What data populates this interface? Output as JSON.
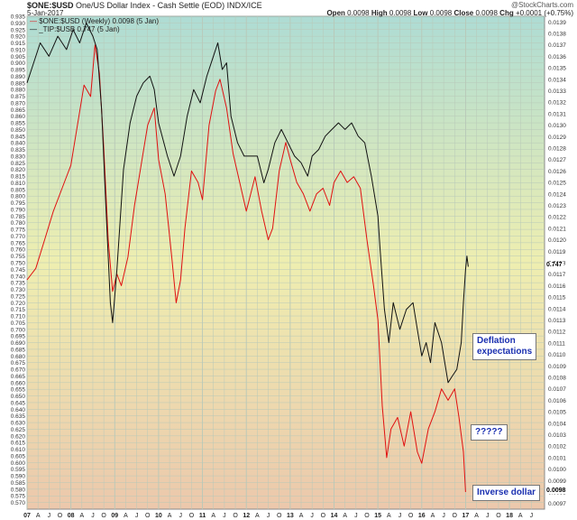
{
  "header": {
    "symbol": "$ONE:$USD",
    "description": "One/US Dollar Index - Cash Settle (EOD) INDX/ICE",
    "date": "5-Jan-2017",
    "watermark": "@StockCharts.com",
    "ohlc": [
      {
        "label": "Open",
        "value": "0.0098"
      },
      {
        "label": "High",
        "value": "0.0098"
      },
      {
        "label": "Low",
        "value": "0.0098"
      },
      {
        "label": "Close",
        "value": "0.0098"
      },
      {
        "label": "Chg",
        "value": "+0.0001 (+0.75%)"
      }
    ]
  },
  "annotations": {
    "deflation_line1": "Deflation",
    "deflation_line2": "expectations",
    "question": "?????",
    "inverse": "Inverse dollar"
  },
  "colors": {
    "tip_series": "#111111",
    "usd_series": "#e01010",
    "grid": "#b8c8b8",
    "bg_top": "#aedcd4",
    "bg_mid": "#eeeeb0",
    "bg_bottom": "#ecc8ac"
  },
  "chart_data": {
    "type": "line",
    "title": "$ONE:$USD",
    "legend_placement": "top-left",
    "grid": true,
    "x_ticks": [
      "07",
      "A",
      "J",
      "O",
      "08",
      "A",
      "J",
      "O",
      "09",
      "A",
      "J",
      "O",
      "10",
      "A",
      "J",
      "O",
      "11",
      "A",
      "J",
      "O",
      "12",
      "A",
      "J",
      "O",
      "13",
      "A",
      "J",
      "O",
      "14",
      "A",
      "J",
      "O",
      "15",
      "A",
      "J",
      "O",
      "16",
      "A",
      "J",
      "O",
      "17",
      "A",
      "J",
      "O",
      "18",
      "A",
      "J"
    ],
    "xlim": [
      2007.0,
      2018.8
    ],
    "left_axis": {
      "ylim": [
        0.565,
        0.935
      ],
      "ticks": [
        "0.935",
        "0.930",
        "0.925",
        "0.920",
        "0.915",
        "0.910",
        "0.905",
        "0.900",
        "0.895",
        "0.890",
        "0.885",
        "0.880",
        "0.875",
        "0.870",
        "0.865",
        "0.860",
        "0.855",
        "0.850",
        "0.845",
        "0.840",
        "0.835",
        "0.830",
        "0.825",
        "0.820",
        "0.815",
        "0.810",
        "0.805",
        "0.800",
        "0.795",
        "0.790",
        "0.785",
        "0.780",
        "0.775",
        "0.770",
        "0.765",
        "0.760",
        "0.755",
        "0.750",
        "0.745",
        "0.740",
        "0.735",
        "0.730",
        "0.725",
        "0.720",
        "0.715",
        "0.710",
        "0.705",
        "0.700",
        "0.695",
        "0.690",
        "0.685",
        "0.680",
        "0.675",
        "0.670",
        "0.665",
        "0.660",
        "0.655",
        "0.650",
        "0.645",
        "0.640",
        "0.635",
        "0.630",
        "0.625",
        "0.620",
        "0.615",
        "0.610",
        "0.605",
        "0.600",
        "0.595",
        "0.590",
        "0.585",
        "0.580",
        "0.575",
        "0.570"
      ]
    },
    "right_axis": {
      "ylim": [
        0.00965,
        0.01395
      ],
      "ticks": [
        "0.0139",
        "0.0138",
        "0.0137",
        "0.0136",
        "0.0135",
        "0.0134",
        "0.0133",
        "0.0132",
        "0.0131",
        "0.0130",
        "0.0129",
        "0.0128",
        "0.0127",
        "0.0126",
        "0.0125",
        "0.0124",
        "0.0123",
        "0.0122",
        "0.0121",
        "0.0120",
        "0.0119",
        "0.0118",
        "0.0117",
        "0.0116",
        "0.0115",
        "0.0114",
        "0.0113",
        "0.0112",
        "0.0111",
        "0.0110",
        "0.0109",
        "0.0108",
        "0.0107",
        "0.0106",
        "0.0105",
        "0.0104",
        "0.0103",
        "0.0102",
        "0.0101",
        "0.0100",
        "0.0099",
        "0.0098",
        "0.0097"
      ]
    },
    "series": [
      {
        "name": "$ONE:$USD (Weekly) 0.0098 (5 Jan)",
        "axis": "right",
        "last_label": "0.0098",
        "points": [
          [
            2007.0,
            0.01165
          ],
          [
            2007.2,
            0.01175
          ],
          [
            2007.4,
            0.012
          ],
          [
            2007.6,
            0.01225
          ],
          [
            2007.8,
            0.01245
          ],
          [
            2008.0,
            0.01265
          ],
          [
            2008.15,
            0.013
          ],
          [
            2008.3,
            0.01335
          ],
          [
            2008.45,
            0.01325
          ],
          [
            2008.55,
            0.0137
          ],
          [
            2008.65,
            0.01345
          ],
          [
            2008.75,
            0.0128
          ],
          [
            2008.85,
            0.012
          ],
          [
            2008.95,
            0.01155
          ],
          [
            2009.05,
            0.0117
          ],
          [
            2009.15,
            0.0116
          ],
          [
            2009.3,
            0.01185
          ],
          [
            2009.45,
            0.0123
          ],
          [
            2009.6,
            0.01265
          ],
          [
            2009.75,
            0.013
          ],
          [
            2009.9,
            0.01315
          ],
          [
            2010.0,
            0.0127
          ],
          [
            2010.15,
            0.0124
          ],
          [
            2010.3,
            0.01185
          ],
          [
            2010.4,
            0.01145
          ],
          [
            2010.5,
            0.01165
          ],
          [
            2010.6,
            0.0121
          ],
          [
            2010.75,
            0.0126
          ],
          [
            2010.9,
            0.0125
          ],
          [
            2011.0,
            0.01235
          ],
          [
            2011.15,
            0.013
          ],
          [
            2011.3,
            0.0133
          ],
          [
            2011.4,
            0.0134
          ],
          [
            2011.55,
            0.01315
          ],
          [
            2011.7,
            0.01275
          ],
          [
            2011.85,
            0.0125
          ],
          [
            2012.0,
            0.01225
          ],
          [
            2012.2,
            0.01255
          ],
          [
            2012.35,
            0.01225
          ],
          [
            2012.5,
            0.012
          ],
          [
            2012.6,
            0.0121
          ],
          [
            2012.75,
            0.0126
          ],
          [
            2012.9,
            0.01285
          ],
          [
            2013.0,
            0.0127
          ],
          [
            2013.15,
            0.0125
          ],
          [
            2013.3,
            0.0124
          ],
          [
            2013.45,
            0.01225
          ],
          [
            2013.6,
            0.0124
          ],
          [
            2013.75,
            0.01245
          ],
          [
            2013.9,
            0.0123
          ],
          [
            2014.0,
            0.0125
          ],
          [
            2014.15,
            0.0126
          ],
          [
            2014.3,
            0.0125
          ],
          [
            2014.45,
            0.01255
          ],
          [
            2014.6,
            0.01245
          ],
          [
            2014.75,
            0.012
          ],
          [
            2014.9,
            0.0116
          ],
          [
            2015.0,
            0.0113
          ],
          [
            2015.1,
            0.01055
          ],
          [
            2015.2,
            0.0101
          ],
          [
            2015.3,
            0.01035
          ],
          [
            2015.45,
            0.01045
          ],
          [
            2015.6,
            0.0102
          ],
          [
            2015.75,
            0.0105
          ],
          [
            2015.9,
            0.01015
          ],
          [
            2016.0,
            0.01005
          ],
          [
            2016.15,
            0.01035
          ],
          [
            2016.3,
            0.0105
          ],
          [
            2016.45,
            0.0107
          ],
          [
            2016.6,
            0.0106
          ],
          [
            2016.75,
            0.0107
          ],
          [
            2016.85,
            0.01045
          ],
          [
            2016.95,
            0.01015
          ],
          [
            2017.0,
            0.0098
          ]
        ]
      },
      {
        "name": "_TIP:$USB 0.747 (5 Jan)",
        "axis": "left",
        "last_label": "0.747",
        "points": [
          [
            2007.0,
            0.885
          ],
          [
            2007.1,
            0.895
          ],
          [
            2007.3,
            0.915
          ],
          [
            2007.5,
            0.905
          ],
          [
            2007.7,
            0.92
          ],
          [
            2007.9,
            0.91
          ],
          [
            2008.05,
            0.925
          ],
          [
            2008.2,
            0.915
          ],
          [
            2008.35,
            0.93
          ],
          [
            2008.5,
            0.92
          ],
          [
            2008.6,
            0.91
          ],
          [
            2008.7,
            0.865
          ],
          [
            2008.8,
            0.79
          ],
          [
            2008.9,
            0.72
          ],
          [
            2008.95,
            0.705
          ],
          [
            2009.05,
            0.745
          ],
          [
            2009.2,
            0.82
          ],
          [
            2009.35,
            0.855
          ],
          [
            2009.5,
            0.875
          ],
          [
            2009.65,
            0.885
          ],
          [
            2009.8,
            0.89
          ],
          [
            2009.9,
            0.88
          ],
          [
            2010.0,
            0.855
          ],
          [
            2010.2,
            0.83
          ],
          [
            2010.35,
            0.815
          ],
          [
            2010.5,
            0.83
          ],
          [
            2010.65,
            0.86
          ],
          [
            2010.8,
            0.88
          ],
          [
            2010.95,
            0.87
          ],
          [
            2011.1,
            0.89
          ],
          [
            2011.25,
            0.905
          ],
          [
            2011.35,
            0.915
          ],
          [
            2011.45,
            0.895
          ],
          [
            2011.55,
            0.9
          ],
          [
            2011.65,
            0.86
          ],
          [
            2011.8,
            0.84
          ],
          [
            2011.95,
            0.83
          ],
          [
            2012.1,
            0.83
          ],
          [
            2012.25,
            0.83
          ],
          [
            2012.4,
            0.81
          ],
          [
            2012.5,
            0.82
          ],
          [
            2012.65,
            0.84
          ],
          [
            2012.8,
            0.85
          ],
          [
            2012.95,
            0.84
          ],
          [
            2013.1,
            0.83
          ],
          [
            2013.25,
            0.825
          ],
          [
            2013.4,
            0.815
          ],
          [
            2013.5,
            0.83
          ],
          [
            2013.65,
            0.835
          ],
          [
            2013.8,
            0.845
          ],
          [
            2013.95,
            0.85
          ],
          [
            2014.1,
            0.855
          ],
          [
            2014.25,
            0.85
          ],
          [
            2014.4,
            0.855
          ],
          [
            2014.55,
            0.845
          ],
          [
            2014.7,
            0.84
          ],
          [
            2014.85,
            0.815
          ],
          [
            2015.0,
            0.785
          ],
          [
            2015.05,
            0.76
          ],
          [
            2015.15,
            0.715
          ],
          [
            2015.25,
            0.69
          ],
          [
            2015.35,
            0.72
          ],
          [
            2015.5,
            0.7
          ],
          [
            2015.65,
            0.715
          ],
          [
            2015.8,
            0.72
          ],
          [
            2015.9,
            0.7
          ],
          [
            2016.0,
            0.68
          ],
          [
            2016.1,
            0.69
          ],
          [
            2016.2,
            0.675
          ],
          [
            2016.3,
            0.705
          ],
          [
            2016.45,
            0.69
          ],
          [
            2016.6,
            0.66
          ],
          [
            2016.7,
            0.665
          ],
          [
            2016.8,
            0.67
          ],
          [
            2016.9,
            0.69
          ],
          [
            2016.95,
            0.72
          ],
          [
            2017.0,
            0.745
          ],
          [
            2017.03,
            0.755
          ],
          [
            2017.06,
            0.747
          ]
        ]
      }
    ]
  }
}
